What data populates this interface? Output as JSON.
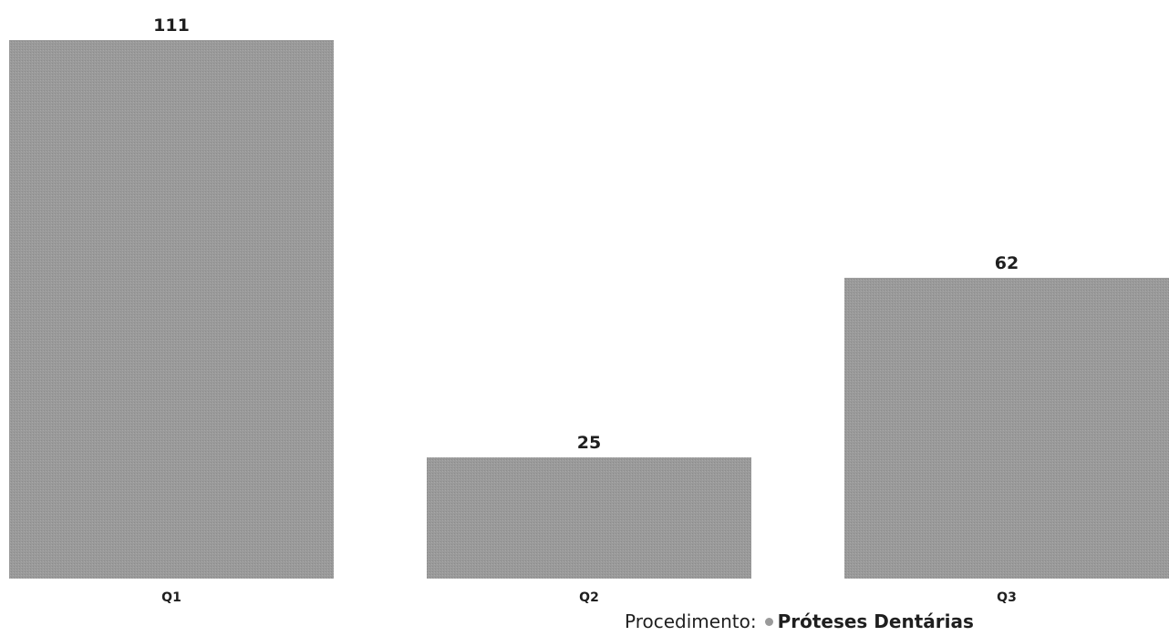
{
  "chart_data": {
    "type": "bar",
    "categories": [
      "Q1",
      "Q2",
      "Q3"
    ],
    "series": [
      {
        "name": "Próteses Dentárias",
        "values": [
          111,
          25,
          62
        ],
        "color": "#9a9a9a"
      }
    ],
    "data_labels": [
      "111",
      "25",
      "62"
    ],
    "ylim": [
      0,
      111
    ],
    "grid": false,
    "legend": {
      "title": "Procedimento:",
      "placement": "bottom-right"
    }
  }
}
